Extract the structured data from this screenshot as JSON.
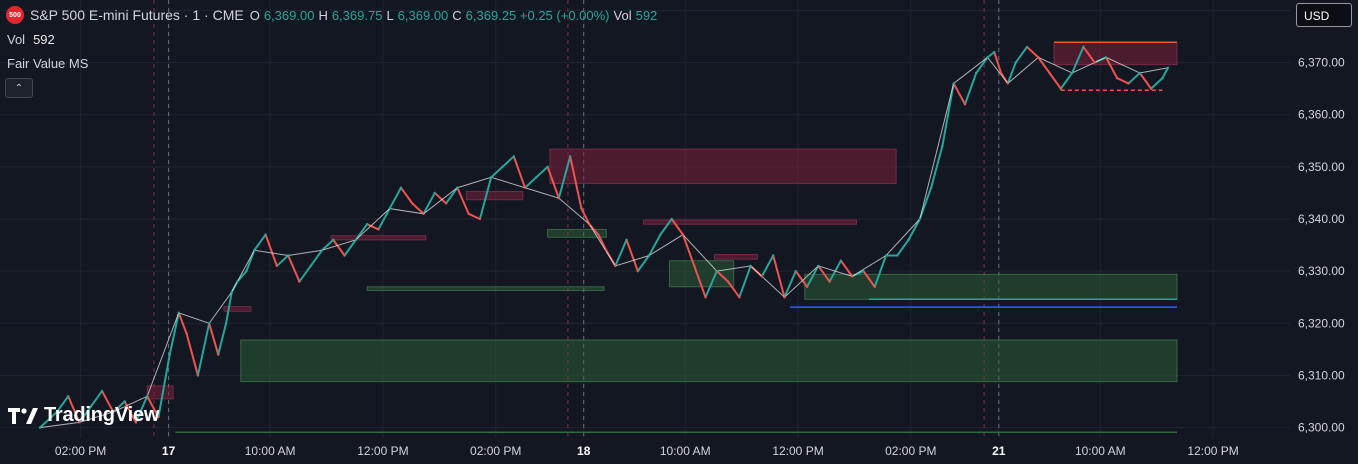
{
  "header": {
    "badge": "500",
    "title": "S&P 500 E-mini Futures · 1 · CME",
    "ohlc": [
      {
        "key": "O",
        "value": "6,369.00"
      },
      {
        "key": "H",
        "value": "6,369.75"
      },
      {
        "key": "L",
        "value": "6,369.00"
      },
      {
        "key": "C",
        "value": "6,369.25 +0.25 (+0.00%)"
      },
      {
        "key": "Vol",
        "value": "592"
      }
    ]
  },
  "volume_legend": {
    "label": "Vol",
    "value": "592"
  },
  "indicator_legend": {
    "label": "Fair Value MS"
  },
  "currency": "USD",
  "watermark": "TradingView",
  "colors": {
    "background": "#131722",
    "up": "#26a69a",
    "down": "#ef5350",
    "bear_zone": "#7a1f3a",
    "bull_zone": "#2e6b3a",
    "grid": "#1f2430",
    "level_blue": "#2962ff"
  },
  "chart_data": {
    "type": "line",
    "title": "S&P 500 E-mini Futures · 1 · CME",
    "xlabel": "",
    "ylabel": "",
    "ylim": [
      6298,
      6382
    ],
    "y_ticks": [
      6300,
      6310,
      6320,
      6330,
      6340,
      6350,
      6360,
      6370,
      6380
    ],
    "x_range": [
      0,
      100
    ],
    "x_ticks": [
      {
        "t": 3.6,
        "label": "02:00 PM"
      },
      {
        "t": 11.4,
        "label": "17"
      },
      {
        "t": 20.4,
        "label": "10:00 AM"
      },
      {
        "t": 30.4,
        "label": "12:00 PM"
      },
      {
        "t": 40.4,
        "label": "02:00 PM"
      },
      {
        "t": 48.2,
        "label": "18"
      },
      {
        "t": 57.2,
        "label": "10:00 AM"
      },
      {
        "t": 67.2,
        "label": "12:00 PM"
      },
      {
        "t": 77.2,
        "label": "02:00 PM"
      },
      {
        "t": 85.0,
        "label": "21"
      },
      {
        "t": 94.0,
        "label": "10:00 AM"
      },
      {
        "t": 104.0,
        "label": "12:00 PM"
      }
    ],
    "session_lines": [
      10.1,
      11.4,
      46.8,
      48.2,
      83.7,
      85.0
    ],
    "series": [
      {
        "name": "",
        "type": "line",
        "x": [
          0,
          1.5,
          2.5,
          3.5,
          4.5,
          5.5,
          6.5,
          7.5,
          8.5,
          9.5,
          10.5,
          11.5,
          12.3,
          13,
          14,
          15,
          15.8,
          16.5,
          17,
          17.5,
          18.3,
          19,
          20,
          21,
          22,
          23,
          24,
          25,
          26,
          27,
          28,
          29,
          30,
          31,
          32,
          33,
          34,
          35,
          36,
          37,
          38,
          39,
          40,
          41,
          42,
          43,
          44,
          45,
          46,
          47,
          48,
          48.7,
          49.5,
          50.2,
          51,
          52,
          53,
          54,
          55,
          56,
          57,
          58,
          59,
          60,
          61,
          62,
          63,
          64,
          65,
          66,
          67,
          68,
          69,
          70,
          71,
          72,
          73,
          74,
          75,
          76,
          77,
          78,
          79,
          80,
          81,
          82,
          83,
          84,
          84.6,
          85.2,
          85.8,
          86.5,
          87.5,
          88.5,
          89.5,
          90.5,
          91.5,
          92.5,
          93.5,
          94.5,
          95.5,
          96.5,
          97.5,
          98.5,
          99.5,
          100
        ],
        "y": [
          6300,
          6303,
          6306,
          6301,
          6304,
          6307,
          6303,
          6305,
          6301,
          6306,
          6302,
          6314,
          6322,
          6318,
          6310,
          6320,
          6314,
          6320,
          6326,
          6328,
          6330,
          6334,
          6337,
          6331,
          6333,
          6328,
          6331,
          6334,
          6336,
          6333,
          6336,
          6339,
          6338,
          6342,
          6346,
          6343,
          6341,
          6345,
          6343,
          6346,
          6341,
          6340,
          6348,
          6350,
          6352,
          6346,
          6348,
          6350,
          6344,
          6352,
          6342,
          6339,
          6337,
          6334,
          6331,
          6336,
          6330,
          6333,
          6337,
          6340,
          6337,
          6331,
          6325,
          6330,
          6328,
          6325,
          6331,
          6329,
          6333,
          6325,
          6330,
          6327,
          6331,
          6328,
          6332,
          6329,
          6330,
          6327,
          6333,
          6333,
          6336,
          6340,
          6346,
          6354,
          6366,
          6362,
          6368,
          6371,
          6372,
          6368,
          6366,
          6370,
          6373,
          6371,
          6368,
          6365,
          6368,
          6373,
          6370,
          6371,
          6367,
          6366,
          6368,
          6365,
          6367,
          6369
        ],
        "color": "#26a69a"
      }
    ],
    "zones": [
      {
        "kind": "bear",
        "x0": 9.5,
        "x1": 11.8,
        "y0": 6305.5,
        "y1": 6308.0
      },
      {
        "kind": "bear",
        "x0": 16.3,
        "x1": 18.7,
        "y0": 6322.3,
        "y1": 6323.2
      },
      {
        "kind": "bear",
        "x0": 25.8,
        "x1": 34.2,
        "y0": 6336.0,
        "y1": 6336.8
      },
      {
        "kind": "bear",
        "x0": 37.8,
        "x1": 42.8,
        "y0": 6343.7,
        "y1": 6345.3
      },
      {
        "kind": "bear",
        "x0": 45.2,
        "x1": 75.9,
        "y0": 6346.8,
        "y1": 6353.4
      },
      {
        "kind": "bear",
        "x0": 53.5,
        "x1": 72.4,
        "y0": 6339.0,
        "y1": 6339.8
      },
      {
        "kind": "bear",
        "x0": 59.8,
        "x1": 63.6,
        "y0": 6332.3,
        "y1": 6333.2
      },
      {
        "kind": "bear",
        "x0": 89.9,
        "x1": 100.8,
        "y0": 6369.6,
        "y1": 6373.9
      },
      {
        "kind": "bull",
        "x0": 17.8,
        "x1": 100.8,
        "y0": 6308.8,
        "y1": 6316.8
      },
      {
        "kind": "bull",
        "x0": 29.0,
        "x1": 50.0,
        "y0": 6326.3,
        "y1": 6327.0
      },
      {
        "kind": "bull",
        "x0": 45.0,
        "x1": 50.2,
        "y0": 6336.5,
        "y1": 6338.0
      },
      {
        "kind": "bull",
        "x0": 55.8,
        "x1": 61.5,
        "y0": 6327.0,
        "y1": 6332.0
      },
      {
        "kind": "bull",
        "x0": 67.8,
        "x1": 100.8,
        "y0": 6324.6,
        "y1": 6329.4
      }
    ],
    "levels": [
      {
        "x0": 66.5,
        "x1": 100.8,
        "y": 6323.1,
        "color": "#2962ff"
      },
      {
        "x0": 73.5,
        "x1": 100.8,
        "y": 6324.6,
        "color": "#26a69a"
      },
      {
        "x0": 89.9,
        "x1": 100.8,
        "y": 6373.9,
        "color": "#f05a28"
      },
      {
        "x0": 90.5,
        "x1": 99.5,
        "y": 6364.7,
        "color": "#ef5350",
        "dashed": true
      },
      {
        "x0": 12.0,
        "x1": 100.8,
        "y": 6299.1,
        "color": "#2e6b3a"
      }
    ]
  }
}
